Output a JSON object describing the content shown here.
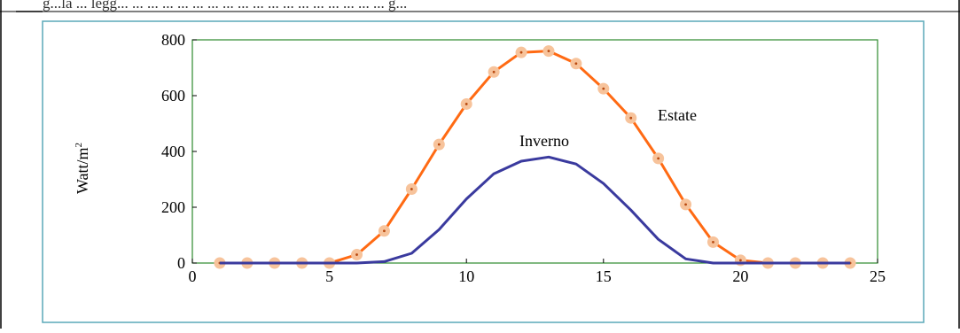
{
  "header_fragment": "g...la ... legg... ... ... ... ... ... ... ... ... ... ... ... ... ... ... ... ... ... g...",
  "chart_data": {
    "type": "line",
    "title": "",
    "xlabel": "",
    "ylabel": "Watt/m",
    "ylabel_superscript": "2",
    "xlim": [
      0,
      25
    ],
    "ylim": [
      0,
      800
    ],
    "xticks": [
      0,
      5,
      10,
      15,
      20,
      25
    ],
    "yticks": [
      0,
      200,
      400,
      600,
      800
    ],
    "grid": false,
    "series": [
      {
        "name": "Estate",
        "color": "#ff6a13",
        "marker_color": "#f7c39b",
        "markers": true,
        "x": [
          1,
          2,
          3,
          4,
          5,
          6,
          7,
          8,
          9,
          10,
          11,
          12,
          13,
          14,
          15,
          16,
          17,
          18,
          19,
          20,
          21,
          22,
          23,
          24
        ],
        "y": [
          0,
          0,
          0,
          0,
          0,
          30,
          115,
          265,
          425,
          570,
          685,
          755,
          760,
          715,
          625,
          520,
          375,
          210,
          75,
          10,
          0,
          0,
          0,
          0
        ]
      },
      {
        "name": "Inverno",
        "color": "#3a3a9e",
        "markers": false,
        "x": [
          1,
          2,
          3,
          4,
          5,
          6,
          7,
          8,
          9,
          10,
          11,
          12,
          13,
          14,
          15,
          16,
          17,
          18,
          19,
          20,
          21,
          22,
          23,
          24
        ],
        "y": [
          0,
          0,
          0,
          0,
          0,
          0,
          5,
          35,
          120,
          230,
          320,
          365,
          380,
          355,
          285,
          190,
          85,
          15,
          0,
          0,
          0,
          0,
          0,
          0
        ]
      }
    ]
  },
  "colors": {
    "panel_border": "#5aa9b8",
    "plot_border": "#2d8a2d",
    "table_border": "#000000"
  }
}
